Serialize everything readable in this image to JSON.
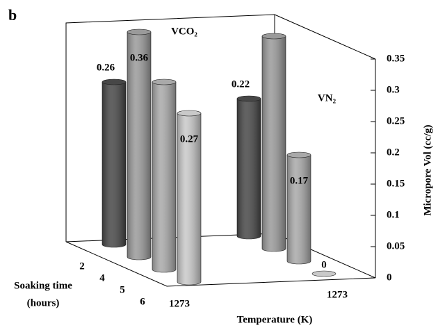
{
  "chart_data": {
    "type": "bar3d",
    "panel_label": "b",
    "y_label": "Micropore Vol (cc/g)",
    "depth_label": [
      "Soaking time",
      "(hours)"
    ],
    "x_label": "Temperature (K)",
    "categories": [
      "1273",
      "1273"
    ],
    "group_labels": [
      "VCO₂",
      "VN₂"
    ],
    "depth_ticks": [
      2,
      4,
      5,
      6
    ],
    "series": [
      {
        "color": "#474747",
        "values": [
          0.26,
          0.22
        ],
        "value_labels": [
          "0.26",
          "0.22"
        ]
      },
      {
        "color": "#9a9a9a",
        "values": [
          0.36,
          0.34
        ],
        "value_labels": [
          "0.36",
          null
        ]
      },
      {
        "color": "#a9a9a9",
        "values": [
          0.3,
          0.17
        ],
        "value_labels": [
          null,
          "0.17"
        ]
      },
      {
        "color": "#c9c9c9",
        "values": [
          0.27,
          0
        ],
        "value_labels": [
          "0.27",
          "0"
        ]
      }
    ],
    "ylim": [
      0,
      0.35
    ],
    "yticks": [
      0,
      0.05,
      0.1,
      0.15,
      0.2,
      0.25,
      0.3,
      0.35
    ]
  }
}
